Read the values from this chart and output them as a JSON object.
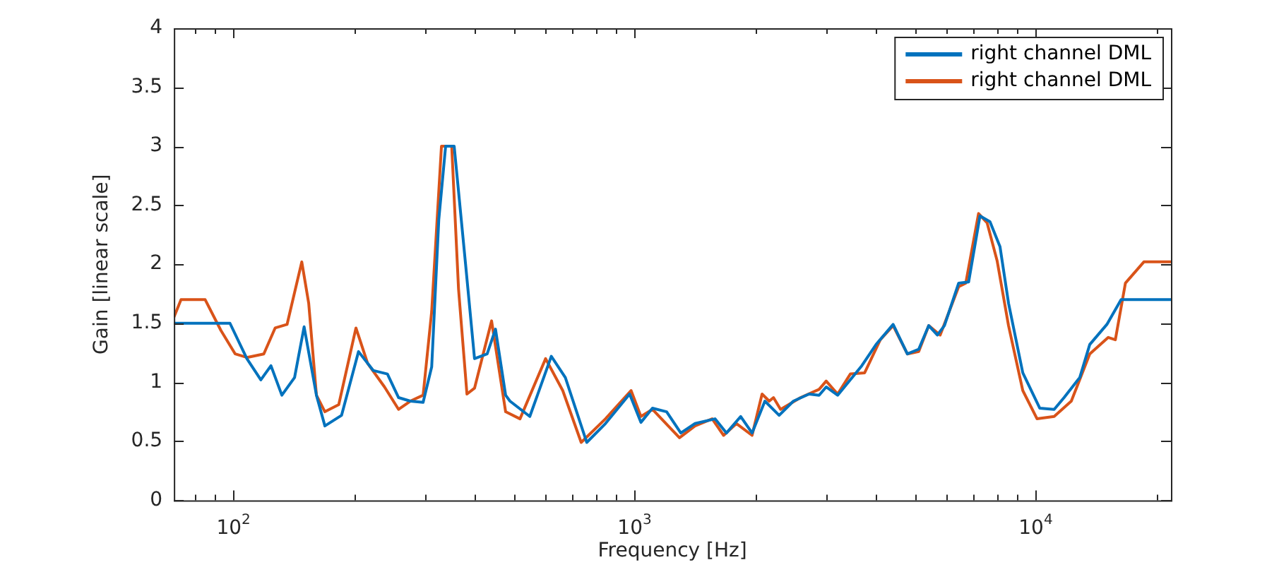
{
  "chart_data": {
    "type": "line",
    "xlabel": "Frequency [Hz]",
    "ylabel": "Gain [linear scale]",
    "log": "x",
    "legend": "top right",
    "xlim": [
      71,
      21740
    ],
    "ylim": [
      0,
      4
    ],
    "xticks": [
      {
        "value": 80,
        "label": null
      },
      {
        "value": 90,
        "label": null
      },
      {
        "value": 100,
        "label": "10$^{2}$"
      },
      {
        "value": 200,
        "label": null
      },
      {
        "value": 300,
        "label": null
      },
      {
        "value": 400,
        "label": null
      },
      {
        "value": 500,
        "label": null
      },
      {
        "value": 600,
        "label": null
      },
      {
        "value": 700,
        "label": null
      },
      {
        "value": 800,
        "label": null
      },
      {
        "value": 900,
        "label": null
      },
      {
        "value": 1000,
        "label": "10$^{3}$"
      },
      {
        "value": 2000,
        "label": null
      },
      {
        "value": 3000,
        "label": null
      },
      {
        "value": 4000,
        "label": null
      },
      {
        "value": 5000,
        "label": null
      },
      {
        "value": 6000,
        "label": null
      },
      {
        "value": 7000,
        "label": null
      },
      {
        "value": 8000,
        "label": null
      },
      {
        "value": 9000,
        "label": null
      },
      {
        "value": 10000,
        "label": "10$^{4}$"
      },
      {
        "value": 20000,
        "label": null
      }
    ],
    "yticks": [
      0,
      0.5,
      1,
      1.5,
      2,
      2.5,
      3,
      3.5,
      4
    ],
    "series": [
      {
        "name": "right channel DML",
        "color": "#0072bd",
        "x": [
          71,
          98,
          108,
          117,
          124,
          132,
          142,
          150,
          161,
          169,
          186,
          205,
          223,
          242,
          258,
          276,
          297,
          312,
          325,
          338,
          355,
          379,
          399,
          429,
          450,
          477,
          489,
          548,
          620,
          672,
          760,
          846,
          972,
          1037,
          1108,
          1202,
          1304,
          1415,
          1587,
          1695,
          1839,
          1963,
          2113,
          2293,
          2489,
          2723,
          2884,
          3004,
          3208,
          3685,
          4000,
          4412,
          4787,
          5110,
          5413,
          5686,
          5922,
          6427,
          6806,
          7263,
          7693,
          8147,
          8557,
          9286,
          10240,
          11120,
          11770,
          12880,
          13640,
          15050,
          16330,
          21740
        ],
        "values": [
          1.5,
          1.5,
          1.2,
          1.02,
          1.14,
          0.89,
          1.04,
          1.47,
          0.89,
          0.63,
          0.72,
          1.26,
          1.1,
          1.07,
          0.87,
          0.84,
          0.83,
          1.13,
          2.38,
          3.0,
          3.0,
          2.0,
          1.2,
          1.24,
          1.45,
          0.89,
          0.84,
          0.71,
          1.22,
          1.04,
          0.49,
          0.65,
          0.9,
          0.66,
          0.78,
          0.75,
          0.57,
          0.65,
          0.69,
          0.57,
          0.71,
          0.57,
          0.84,
          0.72,
          0.84,
          0.9,
          0.89,
          0.96,
          0.89,
          1.14,
          1.32,
          1.49,
          1.24,
          1.28,
          1.48,
          1.4,
          1.48,
          1.84,
          1.85,
          2.41,
          2.36,
          2.15,
          1.67,
          1.08,
          0.78,
          0.77,
          0.87,
          1.04,
          1.32,
          1.49,
          1.7,
          1.7
        ]
      },
      {
        "name": "right channel DML",
        "color": "#d95319",
        "x": [
          71,
          74,
          85,
          93,
          101,
          108,
          119,
          127,
          136,
          148,
          154,
          161,
          169,
          183,
          202,
          216,
          238,
          258,
          276,
          297,
          312,
          330,
          350,
          364,
          382,
          399,
          440,
          477,
          518,
          600,
          662,
          736,
          846,
          980,
          1037,
          1108,
          1294,
          1415,
          1561,
          1667,
          1795,
          1963,
          2079,
          2166,
          2220,
          2312,
          2593,
          2884,
          3004,
          3208,
          3451,
          3746,
          4098,
          4412,
          4787,
          5110,
          5413,
          5779,
          6427,
          6695,
          7204,
          7568,
          8014,
          8557,
          9286,
          10080,
          11120,
          12270,
          13640,
          15170,
          15800,
          16740,
          18610,
          21740
        ],
        "values": [
          1.55,
          1.7,
          1.7,
          1.44,
          1.24,
          1.21,
          1.24,
          1.46,
          1.49,
          2.02,
          1.67,
          0.89,
          0.75,
          0.81,
          1.46,
          1.16,
          0.96,
          0.77,
          0.84,
          0.89,
          1.6,
          3.0,
          3.0,
          1.79,
          0.9,
          0.95,
          1.52,
          0.75,
          0.69,
          1.2,
          0.93,
          0.49,
          0.69,
          0.93,
          0.71,
          0.77,
          0.53,
          0.63,
          0.69,
          0.55,
          0.65,
          0.55,
          0.9,
          0.84,
          0.87,
          0.77,
          0.87,
          0.94,
          1.01,
          0.9,
          1.07,
          1.08,
          1.36,
          1.48,
          1.24,
          1.26,
          1.48,
          1.4,
          1.81,
          1.84,
          2.43,
          2.35,
          2.03,
          1.48,
          0.93,
          0.69,
          0.71,
          0.84,
          1.24,
          1.38,
          1.36,
          1.84,
          2.02,
          2.02
        ]
      }
    ]
  }
}
